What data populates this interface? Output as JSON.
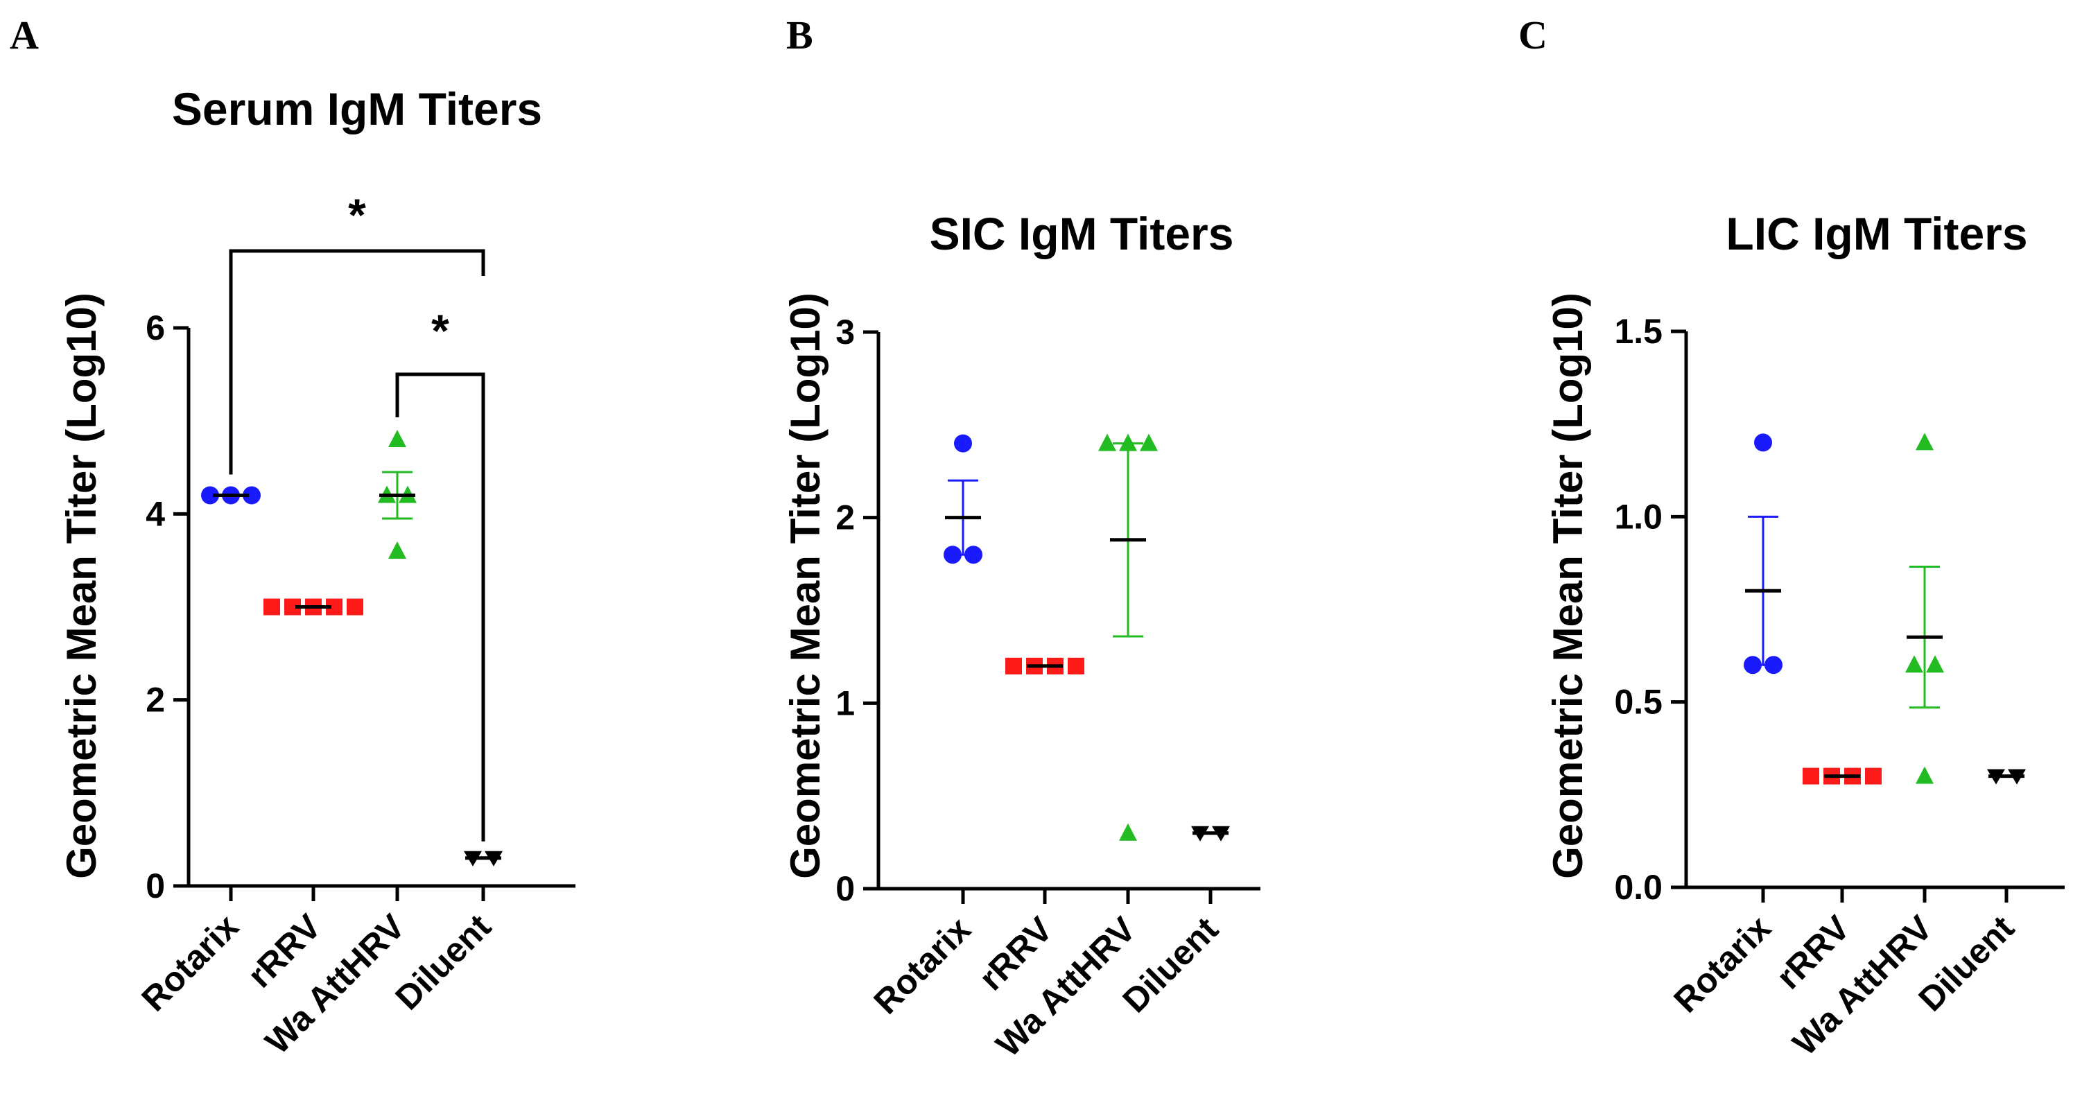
{
  "chart_data": [
    {
      "panel": "A",
      "type": "scatter",
      "title": "Serum IgM Titers",
      "ylabel": "Geometric Mean Titer (Log10)",
      "categories": [
        "Rotarix",
        "rRRV",
        "Wa AttHRV",
        "Diluent"
      ],
      "ylim": [
        0,
        6
      ],
      "yticks": [
        0,
        2,
        4,
        6
      ],
      "yticklabels": [
        "0",
        "2",
        "4",
        "6"
      ],
      "groups": [
        {
          "category": "Rotarix",
          "color": "#1a1aff",
          "marker": "circle",
          "points": [
            4.2,
            4.2,
            4.2
          ],
          "mean": 4.2,
          "sem": 0
        },
        {
          "category": "rRRV",
          "color": "#ff1a1a",
          "marker": "square",
          "points": [
            3.0,
            3.0,
            3.0,
            3.0,
            3.0
          ],
          "mean": 3.0,
          "sem": 0
        },
        {
          "category": "Wa AttHRV",
          "color": "#22bb22",
          "marker": "triangle-up",
          "points": [
            4.8,
            4.2,
            4.2,
            3.6
          ],
          "mean": 4.2,
          "sem": 0.25
        },
        {
          "category": "Diluent",
          "color": "#000000",
          "marker": "triangle-down",
          "points": [
            0.3,
            0.3
          ],
          "mean": 0.3,
          "sem": 0
        }
      ],
      "significance": [
        {
          "from": "Rotarix",
          "to": "Diluent",
          "label": "*"
        },
        {
          "from": "Wa AttHRV",
          "to": "Diluent",
          "label": "*"
        }
      ]
    },
    {
      "panel": "B",
      "type": "scatter",
      "title": "SIC IgM Titers",
      "ylabel": "Geometric Mean Titer (Log10)",
      "categories": [
        "Rotarix",
        "rRRV",
        "Wa AttHRV",
        "Diluent"
      ],
      "ylim": [
        0,
        3
      ],
      "yticks": [
        0,
        1,
        2,
        3
      ],
      "yticklabels": [
        "0",
        "1",
        "2",
        "3"
      ],
      "groups": [
        {
          "category": "Rotarix",
          "color": "#1a1aff",
          "marker": "circle",
          "points": [
            2.4,
            1.8,
            1.8
          ],
          "mean": 2.0,
          "sem": 0.2
        },
        {
          "category": "rRRV",
          "color": "#ff1a1a",
          "marker": "square",
          "points": [
            1.2,
            1.2,
            1.2,
            1.2
          ],
          "mean": 1.2,
          "sem": 0
        },
        {
          "category": "Wa AttHRV",
          "color": "#22bb22",
          "marker": "triangle-up",
          "points": [
            2.4,
            2.4,
            2.4,
            0.3
          ],
          "mean": 1.88,
          "sem": 0.52
        },
        {
          "category": "Diluent",
          "color": "#000000",
          "marker": "triangle-down",
          "points": [
            0.3,
            0.3
          ],
          "mean": 0.3,
          "sem": 0
        }
      ],
      "significance": []
    },
    {
      "panel": "C",
      "type": "scatter",
      "title": "LIC IgM Titers",
      "ylabel": "Geometric Mean Titer (Log10)",
      "categories": [
        "Rotarix",
        "rRRV",
        "Wa AttHRV",
        "Diluent"
      ],
      "ylim": [
        0,
        1.5
      ],
      "yticks": [
        0,
        0.5,
        1.0,
        1.5
      ],
      "yticklabels": [
        "0.0",
        "0.5",
        "1.0",
        "1.5"
      ],
      "groups": [
        {
          "category": "Rotarix",
          "color": "#1a1aff",
          "marker": "circle",
          "points": [
            1.2,
            0.6,
            0.6
          ],
          "mean": 0.8,
          "sem": 0.2
        },
        {
          "category": "rRRV",
          "color": "#ff1a1a",
          "marker": "square",
          "points": [
            0.3,
            0.3,
            0.3,
            0.3
          ],
          "mean": 0.3,
          "sem": 0
        },
        {
          "category": "Wa AttHRV",
          "color": "#22bb22",
          "marker": "triangle-up",
          "points": [
            1.2,
            0.6,
            0.6,
            0.3
          ],
          "mean": 0.675,
          "sem": 0.19
        },
        {
          "category": "Diluent",
          "color": "#000000",
          "marker": "triangle-down",
          "points": [
            0.3,
            0.3
          ],
          "mean": 0.3,
          "sem": 0
        }
      ],
      "significance": []
    }
  ]
}
